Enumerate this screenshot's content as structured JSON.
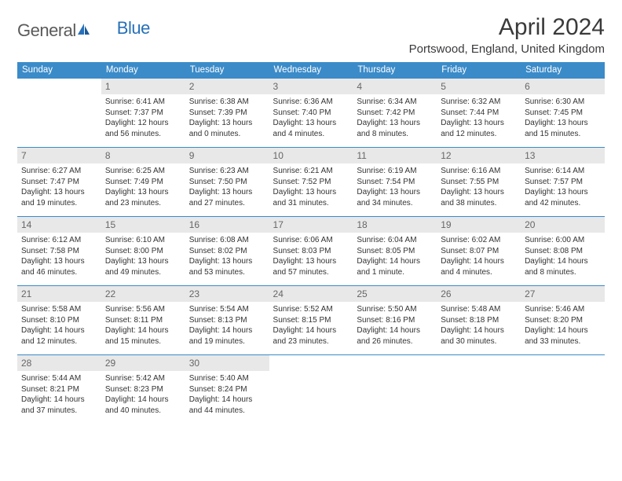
{
  "logo": {
    "text1": "General",
    "text2": "Blue"
  },
  "title": "April 2024",
  "location": "Portswood, England, United Kingdom",
  "day_headers": [
    "Sunday",
    "Monday",
    "Tuesday",
    "Wednesday",
    "Thursday",
    "Friday",
    "Saturday"
  ],
  "colors": {
    "header_bg": "#3b8bc9",
    "header_fg": "#ffffff",
    "border": "#3b8bc9",
    "daynum_bg": "#e8e8e8",
    "body_text": "#333333",
    "title_text": "#3a3a3a",
    "logo_gray": "#5a5a5a",
    "logo_blue": "#2670b8"
  },
  "weeks": [
    [
      {
        "empty": true
      },
      {
        "n": "1",
        "sr": "Sunrise: 6:41 AM",
        "ss": "Sunset: 7:37 PM",
        "d1": "Daylight: 12 hours",
        "d2": "and 56 minutes."
      },
      {
        "n": "2",
        "sr": "Sunrise: 6:38 AM",
        "ss": "Sunset: 7:39 PM",
        "d1": "Daylight: 13 hours",
        "d2": "and 0 minutes."
      },
      {
        "n": "3",
        "sr": "Sunrise: 6:36 AM",
        "ss": "Sunset: 7:40 PM",
        "d1": "Daylight: 13 hours",
        "d2": "and 4 minutes."
      },
      {
        "n": "4",
        "sr": "Sunrise: 6:34 AM",
        "ss": "Sunset: 7:42 PM",
        "d1": "Daylight: 13 hours",
        "d2": "and 8 minutes."
      },
      {
        "n": "5",
        "sr": "Sunrise: 6:32 AM",
        "ss": "Sunset: 7:44 PM",
        "d1": "Daylight: 13 hours",
        "d2": "and 12 minutes."
      },
      {
        "n": "6",
        "sr": "Sunrise: 6:30 AM",
        "ss": "Sunset: 7:45 PM",
        "d1": "Daylight: 13 hours",
        "d2": "and 15 minutes."
      }
    ],
    [
      {
        "n": "7",
        "sr": "Sunrise: 6:27 AM",
        "ss": "Sunset: 7:47 PM",
        "d1": "Daylight: 13 hours",
        "d2": "and 19 minutes."
      },
      {
        "n": "8",
        "sr": "Sunrise: 6:25 AM",
        "ss": "Sunset: 7:49 PM",
        "d1": "Daylight: 13 hours",
        "d2": "and 23 minutes."
      },
      {
        "n": "9",
        "sr": "Sunrise: 6:23 AM",
        "ss": "Sunset: 7:50 PM",
        "d1": "Daylight: 13 hours",
        "d2": "and 27 minutes."
      },
      {
        "n": "10",
        "sr": "Sunrise: 6:21 AM",
        "ss": "Sunset: 7:52 PM",
        "d1": "Daylight: 13 hours",
        "d2": "and 31 minutes."
      },
      {
        "n": "11",
        "sr": "Sunrise: 6:19 AM",
        "ss": "Sunset: 7:54 PM",
        "d1": "Daylight: 13 hours",
        "d2": "and 34 minutes."
      },
      {
        "n": "12",
        "sr": "Sunrise: 6:16 AM",
        "ss": "Sunset: 7:55 PM",
        "d1": "Daylight: 13 hours",
        "d2": "and 38 minutes."
      },
      {
        "n": "13",
        "sr": "Sunrise: 6:14 AM",
        "ss": "Sunset: 7:57 PM",
        "d1": "Daylight: 13 hours",
        "d2": "and 42 minutes."
      }
    ],
    [
      {
        "n": "14",
        "sr": "Sunrise: 6:12 AM",
        "ss": "Sunset: 7:58 PM",
        "d1": "Daylight: 13 hours",
        "d2": "and 46 minutes."
      },
      {
        "n": "15",
        "sr": "Sunrise: 6:10 AM",
        "ss": "Sunset: 8:00 PM",
        "d1": "Daylight: 13 hours",
        "d2": "and 49 minutes."
      },
      {
        "n": "16",
        "sr": "Sunrise: 6:08 AM",
        "ss": "Sunset: 8:02 PM",
        "d1": "Daylight: 13 hours",
        "d2": "and 53 minutes."
      },
      {
        "n": "17",
        "sr": "Sunrise: 6:06 AM",
        "ss": "Sunset: 8:03 PM",
        "d1": "Daylight: 13 hours",
        "d2": "and 57 minutes."
      },
      {
        "n": "18",
        "sr": "Sunrise: 6:04 AM",
        "ss": "Sunset: 8:05 PM",
        "d1": "Daylight: 14 hours",
        "d2": "and 1 minute."
      },
      {
        "n": "19",
        "sr": "Sunrise: 6:02 AM",
        "ss": "Sunset: 8:07 PM",
        "d1": "Daylight: 14 hours",
        "d2": "and 4 minutes."
      },
      {
        "n": "20",
        "sr": "Sunrise: 6:00 AM",
        "ss": "Sunset: 8:08 PM",
        "d1": "Daylight: 14 hours",
        "d2": "and 8 minutes."
      }
    ],
    [
      {
        "n": "21",
        "sr": "Sunrise: 5:58 AM",
        "ss": "Sunset: 8:10 PM",
        "d1": "Daylight: 14 hours",
        "d2": "and 12 minutes."
      },
      {
        "n": "22",
        "sr": "Sunrise: 5:56 AM",
        "ss": "Sunset: 8:11 PM",
        "d1": "Daylight: 14 hours",
        "d2": "and 15 minutes."
      },
      {
        "n": "23",
        "sr": "Sunrise: 5:54 AM",
        "ss": "Sunset: 8:13 PM",
        "d1": "Daylight: 14 hours",
        "d2": "and 19 minutes."
      },
      {
        "n": "24",
        "sr": "Sunrise: 5:52 AM",
        "ss": "Sunset: 8:15 PM",
        "d1": "Daylight: 14 hours",
        "d2": "and 23 minutes."
      },
      {
        "n": "25",
        "sr": "Sunrise: 5:50 AM",
        "ss": "Sunset: 8:16 PM",
        "d1": "Daylight: 14 hours",
        "d2": "and 26 minutes."
      },
      {
        "n": "26",
        "sr": "Sunrise: 5:48 AM",
        "ss": "Sunset: 8:18 PM",
        "d1": "Daylight: 14 hours",
        "d2": "and 30 minutes."
      },
      {
        "n": "27",
        "sr": "Sunrise: 5:46 AM",
        "ss": "Sunset: 8:20 PM",
        "d1": "Daylight: 14 hours",
        "d2": "and 33 minutes."
      }
    ],
    [
      {
        "n": "28",
        "sr": "Sunrise: 5:44 AM",
        "ss": "Sunset: 8:21 PM",
        "d1": "Daylight: 14 hours",
        "d2": "and 37 minutes."
      },
      {
        "n": "29",
        "sr": "Sunrise: 5:42 AM",
        "ss": "Sunset: 8:23 PM",
        "d1": "Daylight: 14 hours",
        "d2": "and 40 minutes."
      },
      {
        "n": "30",
        "sr": "Sunrise: 5:40 AM",
        "ss": "Sunset: 8:24 PM",
        "d1": "Daylight: 14 hours",
        "d2": "and 44 minutes."
      },
      {
        "empty": true
      },
      {
        "empty": true
      },
      {
        "empty": true
      },
      {
        "empty": true
      }
    ]
  ]
}
